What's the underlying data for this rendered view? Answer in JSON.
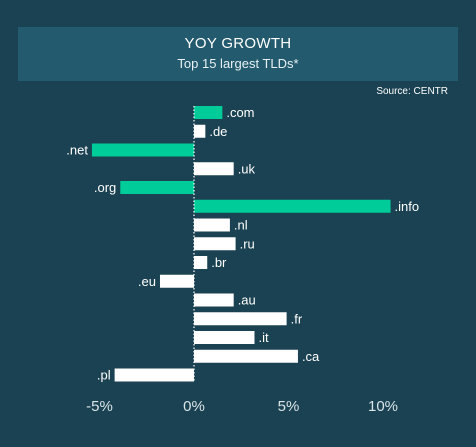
{
  "header": {
    "title": "YOY GROWTH",
    "subtitle": "Top 15 largest TLDs*"
  },
  "source": "Source: CENTR",
  "colors": {
    "background": "#1b4252",
    "title_bg": "#235a6d",
    "highlight": "#00cc99",
    "bar": "#ffffff",
    "zero_line": "#ffffff"
  },
  "chart_data": {
    "type": "bar",
    "orientation": "horizontal",
    "title": "YOY GROWTH",
    "subtitle": "Top 15 largest TLDs*",
    "categories": [
      ".com",
      ".de",
      ".net",
      ".uk",
      ".org",
      ".info",
      ".nl",
      ".ru",
      ".br",
      ".eu",
      ".au",
      ".fr",
      ".it",
      ".ca",
      ".pl"
    ],
    "values": [
      1.5,
      0.6,
      -5.4,
      2.1,
      -3.9,
      10.4,
      1.9,
      2.2,
      0.7,
      -1.8,
      2.1,
      4.9,
      3.2,
      5.5,
      -4.2
    ],
    "highlighted": [
      ".com",
      ".net",
      ".org",
      ".info"
    ],
    "xlim": [
      -6,
      12
    ],
    "xticks": [
      -5,
      0,
      5,
      10
    ],
    "xtick_labels": [
      "-5%",
      "0%",
      "5%",
      "10%"
    ],
    "xlabel": "",
    "ylabel": "",
    "grid": false
  }
}
